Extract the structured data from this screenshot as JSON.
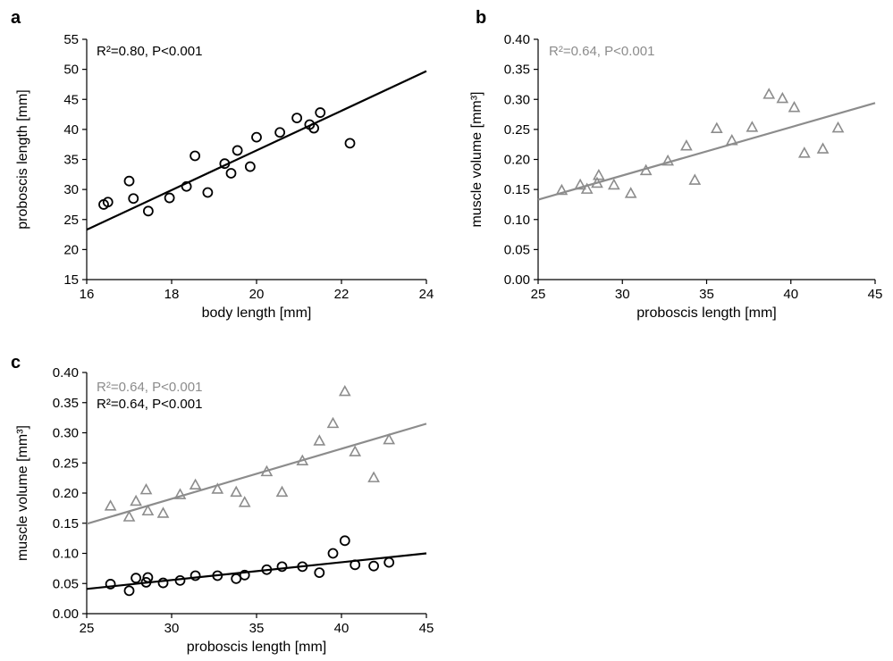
{
  "chart_data": [
    {
      "panel": "a",
      "type": "scatter",
      "title": "",
      "xlabel": "body length [mm]",
      "ylabel": "proboscis length [mm]",
      "xlim": [
        16,
        24
      ],
      "ylim": [
        15,
        55
      ],
      "xticks": [
        "16",
        "18",
        "20",
        "22",
        "24"
      ],
      "yticks": [
        "15",
        "20",
        "25",
        "30",
        "35",
        "40",
        "45",
        "50",
        "55"
      ],
      "annotations": [
        "R²=0.80, P<0.001"
      ],
      "annotation_colors": [
        "#000000"
      ],
      "series": [
        {
          "marker": "circle",
          "color": "#000000",
          "x": [
            16.4,
            16.5,
            17.0,
            17.1,
            17.45,
            17.95,
            18.35,
            18.55,
            18.85,
            19.25,
            19.4,
            19.55,
            19.85,
            20.0,
            20.55,
            20.95,
            21.25,
            21.35,
            21.5,
            22.2
          ],
          "y": [
            27.5,
            27.9,
            31.4,
            28.5,
            26.4,
            28.6,
            30.5,
            35.6,
            29.5,
            34.3,
            32.7,
            36.5,
            33.8,
            38.7,
            39.5,
            41.9,
            40.8,
            40.2,
            42.8,
            37.7
          ]
        }
      ],
      "fit_lines": [
        {
          "color": "#000000",
          "x": [
            16,
            24
          ],
          "y": [
            23.3,
            49.7
          ]
        }
      ],
      "grid": false
    },
    {
      "panel": "b",
      "type": "scatter",
      "title": "",
      "xlabel": "proboscis length [mm]",
      "ylabel": "muscle volume [mm³]",
      "xlim": [
        25,
        45
      ],
      "ylim": [
        0,
        0.4
      ],
      "xticks": [
        "25",
        "30",
        "35",
        "40",
        "45"
      ],
      "yticks": [
        "0.00",
        "0.05",
        "0.10",
        "0.15",
        "0.20",
        "0.25",
        "0.30",
        "0.35",
        "0.40"
      ],
      "annotations": [
        "R²=0.64, P<0.001"
      ],
      "annotation_colors": [
        "#8c8c8c"
      ],
      "series": [
        {
          "marker": "triangle",
          "color": "#8c8c8c",
          "x": [
            26.4,
            27.5,
            27.9,
            28.5,
            28.6,
            29.5,
            30.5,
            31.4,
            32.7,
            33.8,
            34.3,
            35.6,
            36.5,
            37.7,
            38.7,
            39.5,
            40.2,
            40.8,
            41.9,
            42.8
          ],
          "y": [
            0.148,
            0.157,
            0.15,
            0.16,
            0.173,
            0.157,
            0.143,
            0.181,
            0.197,
            0.222,
            0.165,
            0.251,
            0.231,
            0.253,
            0.308,
            0.301,
            0.286,
            0.21,
            0.217,
            0.252
          ]
        }
      ],
      "fit_lines": [
        {
          "color": "#8c8c8c",
          "x": [
            25,
            45
          ],
          "y": [
            0.133,
            0.294
          ]
        }
      ],
      "grid": false
    },
    {
      "panel": "c",
      "type": "scatter",
      "title": "",
      "xlabel": "proboscis length  [mm]",
      "ylabel": "muscle volume [mm³]",
      "xlim": [
        25,
        45
      ],
      "ylim": [
        0,
        0.4
      ],
      "xticks": [
        "25",
        "30",
        "35",
        "40",
        "45"
      ],
      "yticks": [
        "0.00",
        "0.05",
        "0.10",
        "0.15",
        "0.20",
        "0.25",
        "0.30",
        "0.35",
        "0.40"
      ],
      "annotations": [
        "R²=0.64, P<0.001",
        "R²=0.64, P<0.001"
      ],
      "annotation_colors": [
        "#8c8c8c",
        "#000000"
      ],
      "series": [
        {
          "marker": "triangle",
          "color": "#8c8c8c",
          "x": [
            26.4,
            27.5,
            27.9,
            28.5,
            28.6,
            29.5,
            30.5,
            31.4,
            32.7,
            33.8,
            34.3,
            35.6,
            36.5,
            37.7,
            38.7,
            39.5,
            40.2,
            40.8,
            41.9,
            42.8
          ],
          "y": [
            0.178,
            0.16,
            0.186,
            0.205,
            0.17,
            0.166,
            0.197,
            0.213,
            0.206,
            0.201,
            0.184,
            0.235,
            0.201,
            0.253,
            0.286,
            0.315,
            0.368,
            0.268,
            0.225,
            0.288
          ]
        },
        {
          "marker": "circle",
          "color": "#000000",
          "x": [
            26.4,
            27.5,
            27.9,
            28.5,
            28.6,
            29.5,
            30.5,
            31.4,
            32.7,
            33.8,
            34.3,
            35.6,
            36.5,
            37.7,
            38.7,
            39.5,
            40.2,
            40.8,
            41.9,
            42.8
          ],
          "y": [
            0.049,
            0.038,
            0.059,
            0.052,
            0.06,
            0.051,
            0.055,
            0.063,
            0.063,
            0.058,
            0.064,
            0.073,
            0.078,
            0.078,
            0.068,
            0.1,
            0.121,
            0.081,
            0.079,
            0.085
          ]
        }
      ],
      "fit_lines": [
        {
          "color": "#8c8c8c",
          "x": [
            25,
            45
          ],
          "y": [
            0.149,
            0.315
          ]
        },
        {
          "color": "#000000",
          "x": [
            25,
            45
          ],
          "y": [
            0.041,
            0.1
          ]
        }
      ],
      "grid": false
    }
  ]
}
